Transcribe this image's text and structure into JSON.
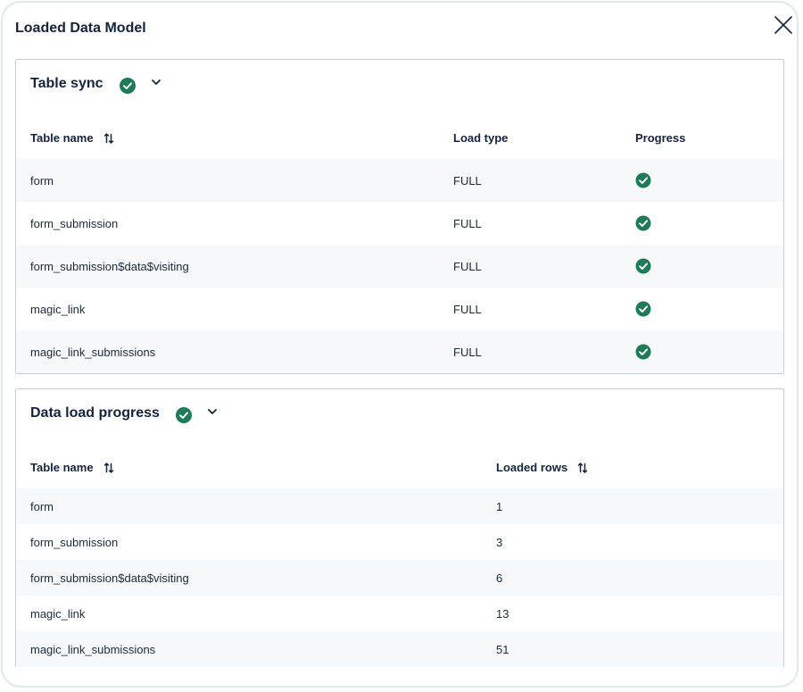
{
  "modal": {
    "title": "Loaded Data Model",
    "close_icon": "close-icon"
  },
  "colors": {
    "success": "#1f7a57",
    "text": "#15233a",
    "stripe": "#f7f8f9",
    "border": "#c9cdd2"
  },
  "table_sync": {
    "title": "Table sync",
    "status_icon": "check-circle-icon",
    "columns": {
      "table_name": "Table name",
      "load_type": "Load type",
      "progress": "Progress"
    },
    "rows": [
      {
        "table_name": "form",
        "load_type": "FULL",
        "progress": "complete"
      },
      {
        "table_name": "form_submission",
        "load_type": "FULL",
        "progress": "complete"
      },
      {
        "table_name": "form_submission$data$visiting",
        "load_type": "FULL",
        "progress": "complete"
      },
      {
        "table_name": "magic_link",
        "load_type": "FULL",
        "progress": "complete"
      },
      {
        "table_name": "magic_link_submissions",
        "load_type": "FULL",
        "progress": "complete"
      }
    ]
  },
  "data_load_progress": {
    "title": "Data load progress",
    "status_icon": "check-circle-icon",
    "columns": {
      "table_name": "Table name",
      "loaded_rows": "Loaded rows"
    },
    "rows": [
      {
        "table_name": "form",
        "loaded_rows": "1"
      },
      {
        "table_name": "form_submission",
        "loaded_rows": "3"
      },
      {
        "table_name": "form_submission$data$visiting",
        "loaded_rows": "6"
      },
      {
        "table_name": "magic_link",
        "loaded_rows": "13"
      },
      {
        "table_name": "magic_link_submissions",
        "loaded_rows": "51"
      }
    ]
  }
}
